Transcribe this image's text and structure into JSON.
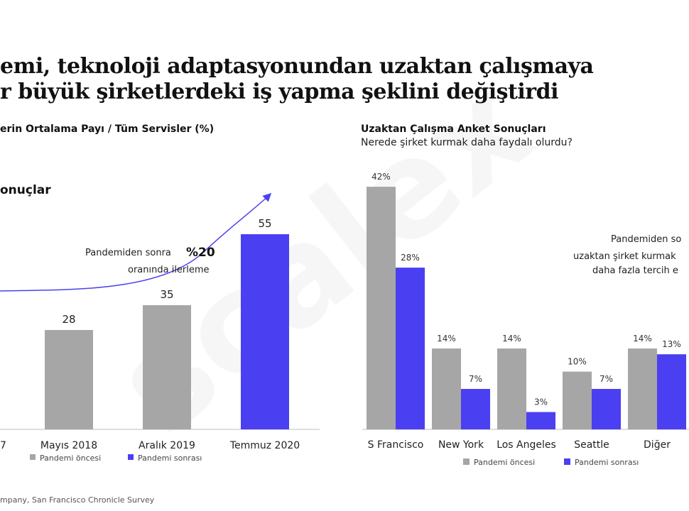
{
  "title": {
    "line1": "emi, teknoloji adaptasyonundan uzaktan çalışmaya",
    "line2": "r büyük şirketlerdeki iş yapma şeklini değiştirdi"
  },
  "watermark": "scalex",
  "left_panel": {
    "subtitle": "erin Ortalama Payı / Tüm Servisler (%)",
    "results_label": "onuçlar",
    "annotation_line1": "Pandemiden sonra",
    "annotation_highlight": "%20",
    "annotation_line2": "oranında ilerleme",
    "clipped_tick": "7",
    "source": "mpany, San Francisco Chronicle Survey"
  },
  "right_panel": {
    "subtitle": "Uzaktan Çalışma Anket Sonuçları",
    "question": "Nerede şirket kurmak daha faydalı olurdu?",
    "note_line1": "Pandemiden so",
    "note_line2": "uzaktan şirket kurmak",
    "note_line3": "daha fazla tercih e"
  },
  "colors": {
    "before": "#a6a6a6",
    "after": "#4b3ff2",
    "arrow": "#4b3ff2",
    "axis": "#bdbdbd"
  },
  "chart_data": [
    {
      "type": "bar",
      "categories": [
        "Mayıs 2018",
        "Aralık 2019",
        "Temmuz 2020"
      ],
      "series": [
        {
          "values": [
            28,
            35,
            55
          ],
          "series_index": [
            0,
            0,
            1
          ]
        }
      ],
      "labels": [
        "28",
        "35",
        "55"
      ],
      "ylim": [
        0,
        60
      ],
      "legend": [
        "Pandemi öncesi",
        "Pandemi sonrası"
      ],
      "legend_placement": "bottom"
    },
    {
      "type": "bar",
      "categories": [
        "S Francisco",
        "New York",
        "Los Angeles",
        "Seattle",
        "Diğer"
      ],
      "series": [
        {
          "name": "Pandemi öncesi",
          "values": [
            42,
            14,
            14,
            10,
            14
          ],
          "labels": [
            "42%",
            "14%",
            "14%",
            "10%",
            "14%"
          ]
        },
        {
          "name": "Pandemi sonrası",
          "values": [
            28,
            7,
            3,
            7,
            13
          ],
          "labels": [
            "28%",
            "7%",
            "3%",
            "7%",
            "13%"
          ]
        }
      ],
      "ylim": [
        0,
        45
      ],
      "legend_placement": "bottom"
    }
  ]
}
